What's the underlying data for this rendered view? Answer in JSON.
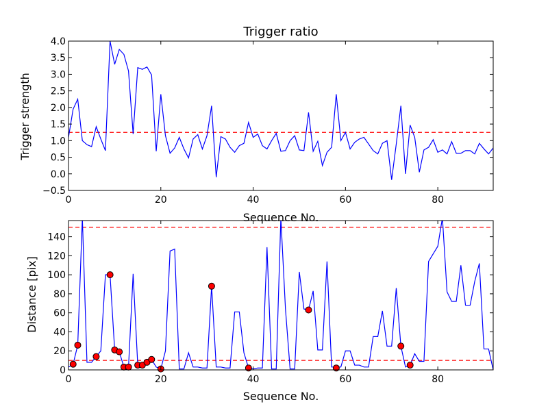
{
  "colors": {
    "series": "#0000ff",
    "reference": "#ff0000",
    "marker": "#ff0000"
  },
  "chart_data": [
    {
      "type": "line",
      "title": "Trigger ratio",
      "xlabel": "Sequence No.",
      "ylabel": "Trigger strength",
      "xlim": [
        0,
        92
      ],
      "ylim": [
        -0.5,
        4.0
      ],
      "xticks": [
        0,
        20,
        40,
        60,
        80
      ],
      "xtick_labels": [
        "0",
        "20",
        "40",
        "60",
        "80"
      ],
      "yticks": [
        -0.5,
        0.0,
        0.5,
        1.0,
        1.5,
        2.0,
        2.5,
        3.0,
        3.5,
        4.0
      ],
      "ytick_labels": [
        "−0.5",
        "0.0",
        "0.5",
        "1.0",
        "1.5",
        "2.0",
        "2.5",
        "3.0",
        "3.5",
        "4.0"
      ],
      "grid": false,
      "reference_lines": [
        1.25
      ],
      "series": [
        {
          "x": [
            0,
            1,
            2,
            3,
            4,
            5,
            6,
            7,
            8,
            9,
            10,
            11,
            12,
            13,
            14,
            15,
            16,
            17,
            18,
            19,
            20,
            21,
            22,
            23,
            24,
            25,
            26,
            27,
            28,
            29,
            30,
            31,
            32,
            33,
            34,
            35,
            36,
            37,
            38,
            39,
            40,
            41,
            42,
            43,
            44,
            45,
            46,
            47,
            48,
            49,
            50,
            51,
            52,
            53,
            54,
            55,
            56,
            57,
            58,
            59,
            60,
            61,
            62,
            63,
            64,
            65,
            66,
            67,
            68,
            69,
            70,
            71,
            72,
            73,
            74,
            75,
            76,
            77,
            78,
            79,
            80,
            81,
            82,
            83,
            84,
            85,
            86,
            87,
            88,
            89,
            90,
            91,
            92
          ],
          "values": [
            1.1,
            1.95,
            2.25,
            1.0,
            0.88,
            0.82,
            1.42,
            1.05,
            0.7,
            4.0,
            3.3,
            3.75,
            3.6,
            3.1,
            1.2,
            3.2,
            3.15,
            3.22,
            2.98,
            0.68,
            2.4,
            1.15,
            0.62,
            0.78,
            1.1,
            0.75,
            0.48,
            1.05,
            1.18,
            0.75,
            1.15,
            2.05,
            -0.1,
            1.12,
            1.05,
            0.8,
            0.65,
            0.85,
            0.92,
            1.55,
            1.1,
            1.2,
            0.85,
            0.75,
            1.0,
            1.22,
            0.68,
            0.7,
            1.0,
            1.15,
            0.72,
            0.7,
            1.85,
            0.68,
            0.98,
            0.25,
            0.65,
            0.8,
            2.4,
            1.0,
            1.25,
            0.75,
            0.95,
            1.05,
            1.1,
            0.9,
            0.7,
            0.6,
            0.92,
            1.0,
            -0.18,
            0.9,
            2.05,
            0.0,
            1.47,
            1.1,
            0.05,
            0.72,
            0.8,
            1.03,
            0.65,
            0.72,
            0.6,
            0.97,
            0.62,
            0.62,
            0.7,
            0.7,
            0.6,
            0.92,
            0.75,
            0.6,
            0.78
          ]
        }
      ]
    },
    {
      "type": "line",
      "title": "",
      "xlabel": "Sequence No.",
      "ylabel": "Distance [pix]",
      "xlim": [
        0,
        92
      ],
      "ylim": [
        0,
        157
      ],
      "xticks": [
        0,
        20,
        40,
        60,
        80
      ],
      "xtick_labels": [
        "0",
        "20",
        "40",
        "60",
        "80"
      ],
      "yticks": [
        0,
        20,
        40,
        60,
        80,
        100,
        120,
        140
      ],
      "ytick_labels": [
        "0",
        "20",
        "40",
        "60",
        "80",
        "100",
        "120",
        "140"
      ],
      "grid": false,
      "reference_lines": [
        10,
        150
      ],
      "series": [
        {
          "x": [
            0,
            1,
            2,
            3,
            4,
            5,
            6,
            7,
            8,
            9,
            10,
            11,
            12,
            13,
            14,
            15,
            16,
            17,
            18,
            19,
            20,
            21,
            22,
            23,
            24,
            25,
            26,
            27,
            28,
            29,
            30,
            31,
            32,
            33,
            34,
            35,
            36,
            37,
            38,
            39,
            40,
            41,
            42,
            43,
            44,
            45,
            46,
            47,
            48,
            49,
            50,
            51,
            52,
            53,
            54,
            55,
            56,
            57,
            58,
            59,
            60,
            61,
            62,
            63,
            64,
            65,
            66,
            67,
            68,
            69,
            70,
            71,
            72,
            73,
            74,
            75,
            76,
            77,
            78,
            79,
            80,
            81,
            82,
            83,
            84,
            85,
            86,
            87,
            88,
            89,
            90,
            91,
            92
          ],
          "values": [
            3,
            6,
            26,
            160,
            8,
            8,
            14,
            20,
            100,
            100,
            21,
            19,
            3,
            3,
            101,
            5,
            5,
            8,
            11,
            3,
            1,
            20,
            125,
            127,
            1,
            1,
            18,
            3,
            3,
            2,
            2,
            88,
            3,
            3,
            2,
            2,
            61,
            61,
            18,
            2,
            1,
            2,
            2,
            129,
            1,
            1,
            160,
            64,
            1,
            1,
            103,
            64,
            63,
            83,
            21,
            21,
            114,
            3,
            3,
            3,
            20,
            20,
            5,
            5,
            3,
            3,
            35,
            35,
            62,
            25,
            25,
            86,
            25,
            3,
            5,
            17,
            9,
            9,
            114,
            122,
            130,
            160,
            82,
            72,
            72,
            110,
            68,
            68,
            93,
            112,
            22,
            22,
            0
          ]
        }
      ],
      "markers": {
        "x": [
          1,
          2,
          6,
          9,
          10,
          11,
          12,
          13,
          15,
          16,
          17,
          18,
          20,
          31,
          39,
          52,
          58,
          72,
          74
        ],
        "values": [
          6,
          26,
          14,
          100,
          21,
          19,
          3,
          3,
          5,
          5,
          8,
          11,
          1,
          88,
          2,
          63,
          2,
          25,
          5
        ]
      }
    }
  ]
}
